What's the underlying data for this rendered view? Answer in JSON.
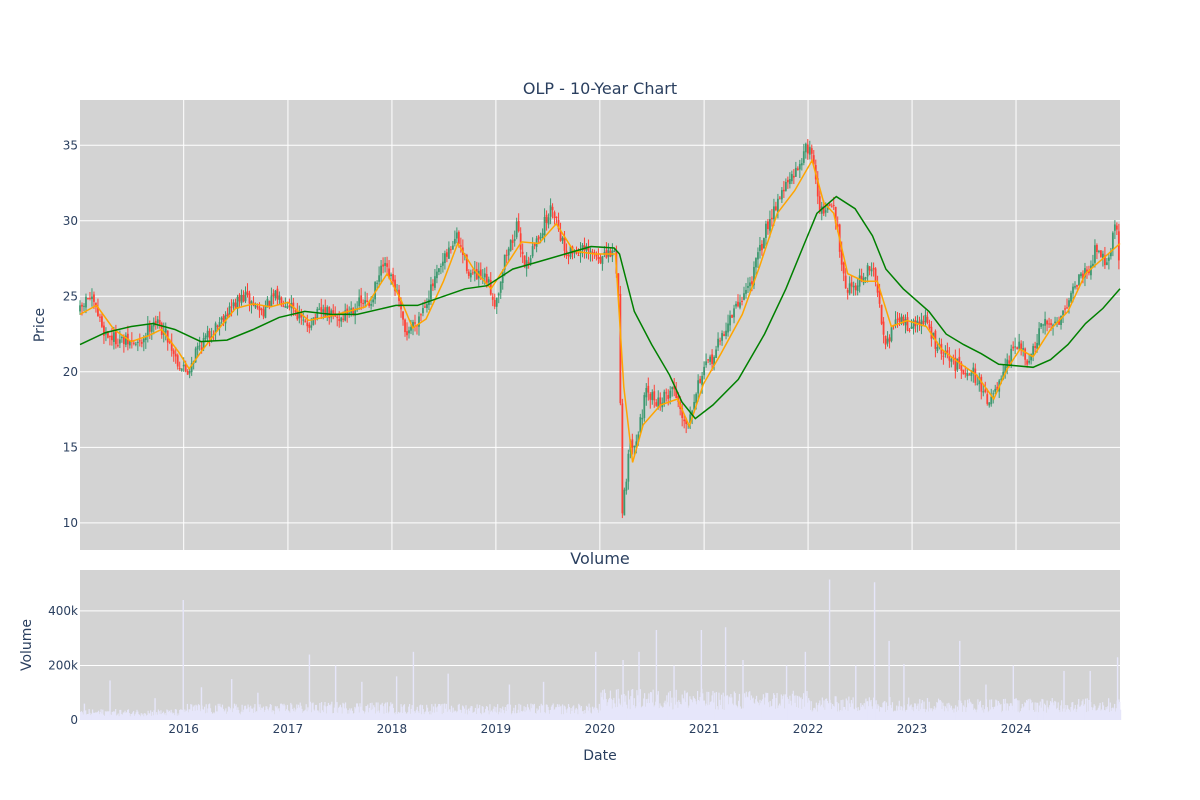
{
  "chart_data": [
    {
      "type": "candlestick",
      "title": "OLP - 10-Year Chart",
      "ylabel": "Price",
      "xlabel": "",
      "xlim": [
        "2015-01-02",
        "2024-12-31"
      ],
      "ylim": [
        8.2,
        38.0
      ],
      "yticks": [
        10,
        15,
        20,
        25,
        30,
        35
      ],
      "xticks": [
        "2016",
        "2017",
        "2018",
        "2019",
        "2020",
        "2021",
        "2022",
        "2023",
        "2024"
      ],
      "grid": true,
      "legend": "none",
      "colors": {
        "background": "#d3d3d3",
        "grid": "#ffffff",
        "up": "#3d9970",
        "down": "#ff4136",
        "ma_fast": "#ffa500",
        "ma_slow": "#008000"
      },
      "close_path": [
        [
          "2015-01-02",
          24.0
        ],
        [
          "2015-02-01",
          25.0
        ],
        [
          "2015-03-01",
          24.0
        ],
        [
          "2015-04-01",
          22.5
        ],
        [
          "2015-06-01",
          22.0
        ],
        [
          "2015-08-01",
          21.8
        ],
        [
          "2015-09-15",
          23.5
        ],
        [
          "2015-11-01",
          22.5
        ],
        [
          "2015-12-15",
          20.5
        ],
        [
          "2016-01-15",
          20.0
        ],
        [
          "2016-02-15",
          21.5
        ],
        [
          "2016-04-01",
          22.5
        ],
        [
          "2016-06-01",
          24.0
        ],
        [
          "2016-08-01",
          25.0
        ],
        [
          "2016-10-01",
          24.0
        ],
        [
          "2016-11-20",
          25.0
        ],
        [
          "2017-01-15",
          24.5
        ],
        [
          "2017-03-01",
          23.0
        ],
        [
          "2017-05-01",
          24.0
        ],
        [
          "2017-07-01",
          23.5
        ],
        [
          "2017-09-01",
          24.5
        ],
        [
          "2017-10-15",
          24.5
        ],
        [
          "2017-12-01",
          27.0
        ],
        [
          "2018-01-15",
          25.5
        ],
        [
          "2018-02-15",
          22.5
        ],
        [
          "2018-04-01",
          23.5
        ],
        [
          "2018-06-01",
          26.0
        ],
        [
          "2018-08-15",
          29.0
        ],
        [
          "2018-10-01",
          26.5
        ],
        [
          "2018-12-01",
          26.0
        ],
        [
          "2018-12-31",
          24.5
        ],
        [
          "2019-02-01",
          27.5
        ],
        [
          "2019-03-15",
          29.5
        ],
        [
          "2019-04-15",
          27.0
        ],
        [
          "2019-06-01",
          29.0
        ],
        [
          "2019-07-20",
          31.0
        ],
        [
          "2019-09-01",
          28.0
        ],
        [
          "2019-11-01",
          28.0
        ],
        [
          "2020-01-15",
          27.5
        ],
        [
          "2020-02-20",
          28.0
        ],
        [
          "2020-03-05",
          26.0
        ],
        [
          "2020-03-20",
          11.0
        ],
        [
          "2020-04-15",
          15.0
        ],
        [
          "2020-05-15",
          16.0
        ],
        [
          "2020-06-10",
          18.5
        ],
        [
          "2020-08-01",
          18.0
        ],
        [
          "2020-09-15",
          19.0
        ],
        [
          "2020-10-30",
          16.5
        ],
        [
          "2020-12-15",
          19.5
        ],
        [
          "2021-02-01",
          21.0
        ],
        [
          "2021-04-01",
          23.5
        ],
        [
          "2021-06-15",
          26.0
        ],
        [
          "2021-08-15",
          30.0
        ],
        [
          "2021-10-01",
          32.0
        ],
        [
          "2021-11-15",
          33.0
        ],
        [
          "2021-12-15",
          34.5
        ],
        [
          "2022-01-10",
          35.0
        ],
        [
          "2022-02-15",
          30.5
        ],
        [
          "2022-04-01",
          31.0
        ],
        [
          "2022-05-15",
          25.5
        ],
        [
          "2022-07-01",
          26.0
        ],
        [
          "2022-08-15",
          27.0
        ],
        [
          "2022-10-01",
          22.0
        ],
        [
          "2022-11-15",
          23.5
        ],
        [
          "2023-01-01",
          23.0
        ],
        [
          "2023-02-15",
          23.5
        ],
        [
          "2023-04-01",
          21.5
        ],
        [
          "2023-06-01",
          20.5
        ],
        [
          "2023-08-01",
          20.0
        ],
        [
          "2023-10-01",
          18.0
        ],
        [
          "2023-11-15",
          19.5
        ],
        [
          "2023-12-31",
          22.0
        ],
        [
          "2024-02-15",
          20.5
        ],
        [
          "2024-04-01",
          23.0
        ],
        [
          "2024-06-01",
          23.5
        ],
        [
          "2024-08-01",
          26.0
        ],
        [
          "2024-09-15",
          27.0
        ],
        [
          "2024-10-15",
          28.5
        ],
        [
          "2024-11-15",
          27.0
        ],
        [
          "2024-12-15",
          30.0
        ],
        [
          "2024-12-31",
          27.0
        ]
      ],
      "moving_average_fast": [
        [
          "2015-01-02",
          23.8
        ],
        [
          "2015-03-01",
          24.4
        ],
        [
          "2015-05-01",
          22.8
        ],
        [
          "2015-07-01",
          22.0
        ],
        [
          "2015-09-01",
          22.4
        ],
        [
          "2015-10-15",
          22.8
        ],
        [
          "2015-12-15",
          21.3
        ],
        [
          "2016-01-20",
          20.2
        ],
        [
          "2016-03-01",
          21.3
        ],
        [
          "2016-05-01",
          22.8
        ],
        [
          "2016-07-01",
          24.2
        ],
        [
          "2016-09-01",
          24.5
        ],
        [
          "2016-11-01",
          24.3
        ],
        [
          "2017-01-01",
          24.6
        ],
        [
          "2017-03-15",
          23.4
        ],
        [
          "2017-06-01",
          23.7
        ],
        [
          "2017-08-01",
          24.0
        ],
        [
          "2017-10-01",
          24.3
        ],
        [
          "2017-12-15",
          26.5
        ],
        [
          "2018-02-01",
          24.8
        ],
        [
          "2018-03-15",
          22.9
        ],
        [
          "2018-05-01",
          23.5
        ],
        [
          "2018-07-01",
          26.0
        ],
        [
          "2018-08-20",
          28.5
        ],
        [
          "2018-10-15",
          26.8
        ],
        [
          "2018-12-15",
          25.5
        ],
        [
          "2019-02-15",
          27.3
        ],
        [
          "2019-04-01",
          28.6
        ],
        [
          "2019-06-01",
          28.5
        ],
        [
          "2019-08-01",
          29.8
        ],
        [
          "2019-10-01",
          28.0
        ],
        [
          "2019-12-15",
          27.8
        ],
        [
          "2020-02-25",
          27.8
        ],
        [
          "2020-03-25",
          19.0
        ],
        [
          "2020-04-25",
          14.0
        ],
        [
          "2020-06-01",
          16.5
        ],
        [
          "2020-08-01",
          17.8
        ],
        [
          "2020-09-30",
          18.2
        ],
        [
          "2020-11-10",
          16.4
        ],
        [
          "2020-12-30",
          19.2
        ],
        [
          "2021-03-01",
          21.2
        ],
        [
          "2021-05-15",
          23.8
        ],
        [
          "2021-07-15",
          27.0
        ],
        [
          "2021-09-15",
          30.5
        ],
        [
          "2021-11-15",
          32.0
        ],
        [
          "2022-01-15",
          34.0
        ],
        [
          "2022-02-25",
          31.2
        ],
        [
          "2022-04-01",
          30.5
        ],
        [
          "2022-05-20",
          26.5
        ],
        [
          "2022-07-15",
          26.0
        ],
        [
          "2022-09-01",
          26.0
        ],
        [
          "2022-10-20",
          23.0
        ],
        [
          "2022-12-15",
          23.4
        ],
        [
          "2023-02-20",
          23.0
        ],
        [
          "2023-04-15",
          21.5
        ],
        [
          "2023-06-15",
          20.6
        ],
        [
          "2023-08-15",
          19.8
        ],
        [
          "2023-10-15",
          18.2
        ],
        [
          "2023-12-01",
          20.2
        ],
        [
          "2024-01-15",
          21.5
        ],
        [
          "2024-03-01",
          21.0
        ],
        [
          "2024-05-01",
          22.8
        ],
        [
          "2024-07-01",
          24.0
        ],
        [
          "2024-09-01",
          26.5
        ],
        [
          "2024-11-01",
          27.5
        ],
        [
          "2024-12-31",
          28.5
        ]
      ],
      "moving_average_slow": [
        [
          "2015-01-02",
          21.8
        ],
        [
          "2015-04-01",
          22.6
        ],
        [
          "2015-07-01",
          23.0
        ],
        [
          "2015-09-15",
          23.2
        ],
        [
          "2015-12-01",
          22.8
        ],
        [
          "2016-03-01",
          22.0
        ],
        [
          "2016-06-01",
          22.1
        ],
        [
          "2016-09-01",
          22.8
        ],
        [
          "2016-12-01",
          23.6
        ],
        [
          "2017-03-01",
          24.0
        ],
        [
          "2017-06-01",
          23.8
        ],
        [
          "2017-09-01",
          23.8
        ],
        [
          "2017-12-01",
          24.2
        ],
        [
          "2018-01-15",
          24.4
        ],
        [
          "2018-04-01",
          24.4
        ],
        [
          "2018-07-01",
          25.0
        ],
        [
          "2018-09-15",
          25.5
        ],
        [
          "2018-12-01",
          25.7
        ],
        [
          "2019-03-01",
          26.8
        ],
        [
          "2019-06-01",
          27.3
        ],
        [
          "2019-09-01",
          27.8
        ],
        [
          "2019-12-01",
          28.3
        ],
        [
          "2020-02-20",
          28.2
        ],
        [
          "2020-03-10",
          27.8
        ],
        [
          "2020-05-01",
          24.0
        ],
        [
          "2020-07-01",
          21.8
        ],
        [
          "2020-09-01",
          19.8
        ],
        [
          "2020-10-15",
          18.0
        ],
        [
          "2020-12-01",
          16.9
        ],
        [
          "2021-02-01",
          17.8
        ],
        [
          "2021-05-01",
          19.5
        ],
        [
          "2021-08-01",
          22.5
        ],
        [
          "2021-10-15",
          25.5
        ],
        [
          "2021-12-15",
          28.3
        ],
        [
          "2022-02-01",
          30.5
        ],
        [
          "2022-04-10",
          31.6
        ],
        [
          "2022-06-15",
          30.8
        ],
        [
          "2022-08-15",
          29.0
        ],
        [
          "2022-10-01",
          26.8
        ],
        [
          "2022-12-01",
          25.5
        ],
        [
          "2023-03-01",
          24.0
        ],
        [
          "2023-05-01",
          22.5
        ],
        [
          "2023-07-01",
          21.8
        ],
        [
          "2023-09-01",
          21.2
        ],
        [
          "2023-11-01",
          20.5
        ],
        [
          "2024-01-01",
          20.4
        ],
        [
          "2024-03-01",
          20.3
        ],
        [
          "2024-05-01",
          20.8
        ],
        [
          "2024-07-01",
          21.8
        ],
        [
          "2024-09-01",
          23.2
        ],
        [
          "2024-11-01",
          24.2
        ],
        [
          "2024-12-31",
          25.5
        ]
      ]
    },
    {
      "type": "bar",
      "title": "Volume",
      "ylabel": "Volume",
      "xlabel": "Date",
      "ylim": [
        0,
        550000
      ],
      "yticks": [
        0,
        200000,
        400000
      ],
      "ytick_labels": [
        "0",
        "200k",
        "400k"
      ],
      "xticks": [
        "2016",
        "2017",
        "2018",
        "2019",
        "2020",
        "2021",
        "2022",
        "2023",
        "2024"
      ],
      "grid": true,
      "colors": {
        "bar": "#e6e6fa",
        "background": "#d3d3d3",
        "grid": "#ffffff"
      },
      "baseline_by_year": [
        [
          "2015",
          30000
        ],
        [
          "2016",
          45000
        ],
        [
          "2017",
          50000
        ],
        [
          "2018",
          45000
        ],
        [
          "2019",
          45000
        ],
        [
          "2020",
          85000
        ],
        [
          "2021",
          80000
        ],
        [
          "2022",
          65000
        ],
        [
          "2023",
          60000
        ],
        [
          "2024",
          60000
        ]
      ],
      "spikes": [
        [
          "2015-01-15",
          60000
        ],
        [
          "2015-04-15",
          145000
        ],
        [
          "2015-09-20",
          80000
        ],
        [
          "2015-12-28",
          440000
        ],
        [
          "2016-03-01",
          120000
        ],
        [
          "2016-06-15",
          150000
        ],
        [
          "2016-09-15",
          100000
        ],
        [
          "2017-03-15",
          240000
        ],
        [
          "2017-06-15",
          200000
        ],
        [
          "2017-09-15",
          140000
        ],
        [
          "2018-01-15",
          160000
        ],
        [
          "2018-03-15",
          250000
        ],
        [
          "2018-07-15",
          170000
        ],
        [
          "2019-02-15",
          130000
        ],
        [
          "2019-06-15",
          140000
        ],
        [
          "2019-12-15",
          250000
        ],
        [
          "2020-03-20",
          220000
        ],
        [
          "2020-05-15",
          250000
        ],
        [
          "2020-07-15",
          330000
        ],
        [
          "2020-09-15",
          200000
        ],
        [
          "2020-12-20",
          330000
        ],
        [
          "2021-03-15",
          340000
        ],
        [
          "2021-05-15",
          220000
        ],
        [
          "2021-10-15",
          200000
        ],
        [
          "2021-12-20",
          250000
        ],
        [
          "2022-03-15",
          515000
        ],
        [
          "2022-06-15",
          200000
        ],
        [
          "2022-08-20",
          505000
        ],
        [
          "2022-10-10",
          290000
        ],
        [
          "2022-12-01",
          205000
        ],
        [
          "2023-06-15",
          290000
        ],
        [
          "2023-09-15",
          130000
        ],
        [
          "2023-12-20",
          200000
        ],
        [
          "2024-06-15",
          180000
        ],
        [
          "2024-09-15",
          180000
        ],
        [
          "2024-12-20",
          230000
        ]
      ]
    }
  ]
}
